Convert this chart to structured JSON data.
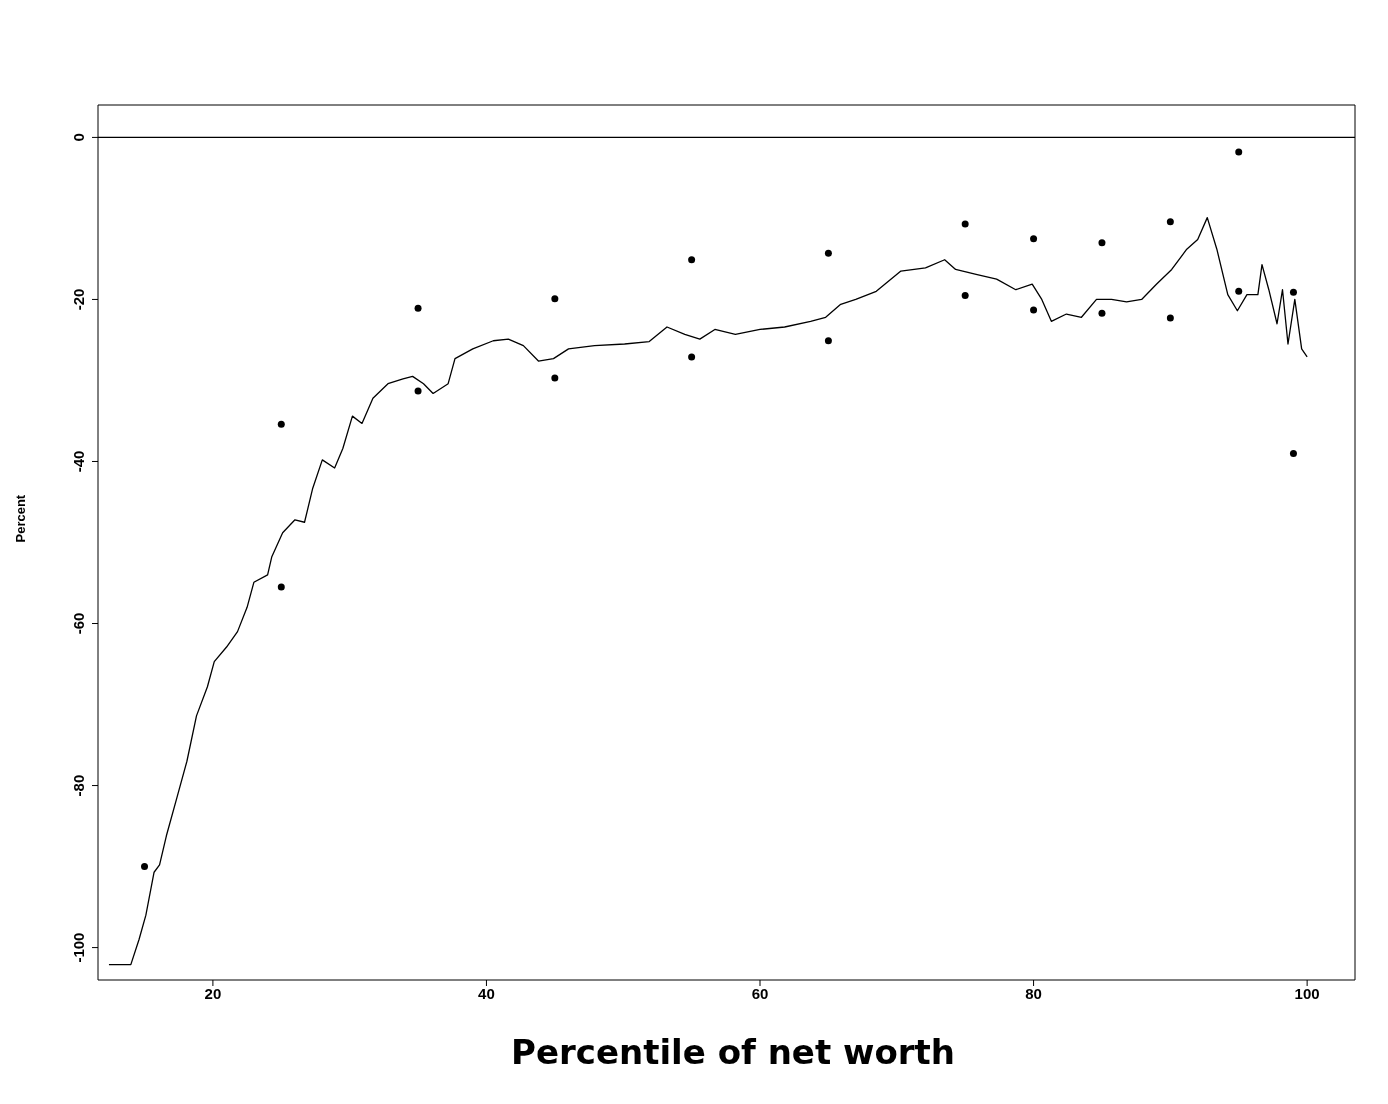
{
  "chart_data": {
    "type": "line",
    "xlabel": "Percentile of net worth",
    "ylabel": "Percent",
    "xlim": [
      11.6,
      103.5
    ],
    "xticks": [
      20,
      40,
      60,
      80,
      100
    ],
    "ylim": [
      -104,
      4
    ],
    "yticks": [
      0,
      -20,
      -40,
      -60,
      -80,
      -100
    ],
    "grid": false,
    "ref_lines": [
      {
        "axis": "y",
        "value": 0,
        "color": "#000000"
      }
    ],
    "series": [
      {
        "color": "#000000",
        "marker": "none",
        "line_style": "solid",
        "x": [
          12.4,
          14.0,
          14.6,
          15.1,
          15.7,
          16.1,
          16.6,
          17.4,
          18.1,
          18.8,
          19.6,
          20.1,
          21.0,
          21.8,
          22.5,
          23.0,
          24.0,
          24.3,
          25.1,
          26.0,
          26.7,
          27.3,
          28.0,
          28.9,
          29.5,
          30.2,
          30.9,
          31.7,
          32.8,
          33.9,
          34.6,
          35.4,
          36.1,
          37.2,
          37.7,
          39.0,
          40.5,
          41.6,
          42.7,
          43.8,
          44.9,
          46.0,
          47.9,
          50.1,
          51.9,
          53.2,
          54.5,
          55.6,
          56.7,
          58.2,
          60.0,
          61.8,
          63.7,
          64.8,
          65.9,
          67.0,
          68.5,
          70.3,
          72.1,
          73.5,
          74.3,
          75.8,
          77.3,
          78.7,
          79.9,
          80.6,
          81.3,
          82.4,
          83.5,
          84.6,
          85.7,
          86.8,
          87.9,
          89.0,
          90.1,
          91.2,
          92.0,
          92.7,
          93.4,
          94.2,
          94.9,
          95.6,
          96.4,
          96.7,
          97.2,
          97.8,
          98.2,
          98.6,
          99.1,
          99.6,
          100.0
        ],
        "values": [
          -102.1,
          -102.1,
          -99.0,
          -96.0,
          -90.7,
          -89.8,
          -86.2,
          -81.3,
          -77.0,
          -71.4,
          -67.8,
          -64.7,
          -62.9,
          -61.0,
          -58.0,
          -54.9,
          -54.0,
          -51.8,
          -48.8,
          -47.2,
          -47.5,
          -43.3,
          -39.8,
          -40.8,
          -38.4,
          -34.4,
          -35.3,
          -32.2,
          -30.4,
          -29.8,
          -29.5,
          -30.4,
          -31.6,
          -30.4,
          -27.3,
          -26.1,
          -25.1,
          -24.9,
          -25.7,
          -27.6,
          -27.3,
          -26.1,
          -25.7,
          -25.5,
          -25.2,
          -23.4,
          -24.3,
          -24.9,
          -23.7,
          -24.3,
          -23.7,
          -23.4,
          -22.7,
          -22.2,
          -20.6,
          -20.0,
          -19.0,
          -16.5,
          -16.1,
          -15.1,
          -16.3,
          -16.9,
          -17.5,
          -18.8,
          -18.1,
          -20.0,
          -22.7,
          -21.8,
          -22.2,
          -20.0,
          -20.0,
          -20.3,
          -20.0,
          -18.1,
          -16.3,
          -13.8,
          -12.6,
          -9.9,
          -13.8,
          -19.4,
          -21.4,
          -19.4,
          -19.4,
          -15.7,
          -18.8,
          -23.0,
          -18.8,
          -25.5,
          -20.0,
          -26.1,
          -27.1
        ]
      },
      {
        "type": "scatter",
        "color": "#000000",
        "marker": "circle",
        "x": [
          15,
          25,
          25,
          35,
          35,
          45,
          45,
          55,
          55,
          65,
          65,
          75,
          75,
          80,
          80,
          85,
          85,
          90,
          90,
          95,
          95,
          99,
          99
        ],
        "values": [
          -90.0,
          -35.4,
          -55.5,
          -21.1,
          -31.3,
          -19.9,
          -29.7,
          -15.1,
          -27.1,
          -14.3,
          -25.1,
          -10.7,
          -19.5,
          -12.5,
          -21.3,
          -13.0,
          -21.7,
          -10.4,
          -22.3,
          -1.8,
          -19.0,
          -19.1,
          -39.0
        ]
      }
    ]
  }
}
